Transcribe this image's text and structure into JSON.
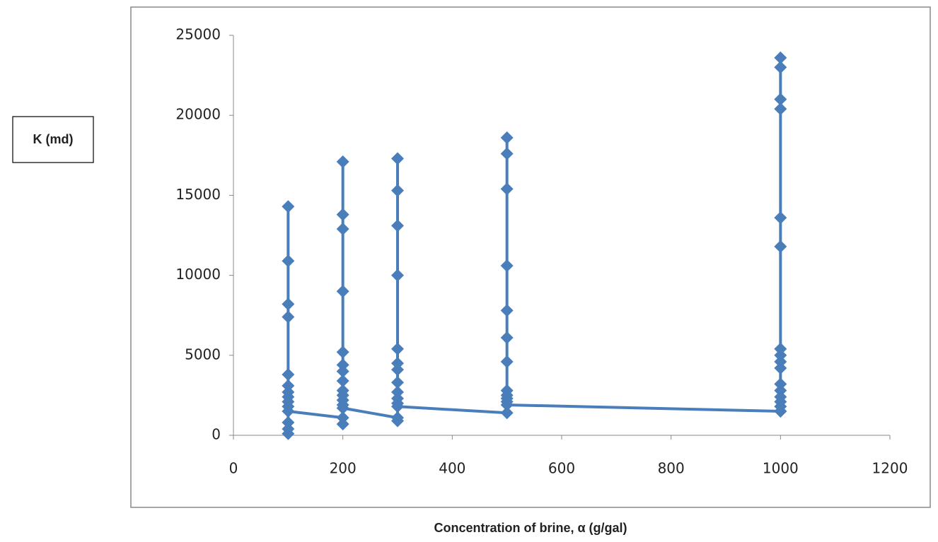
{
  "chart_data": {
    "type": "line",
    "y_label": "K (md)",
    "x_label": "Concentration of brine, α (g/gal)",
    "x": [
      100,
      100,
      100,
      100,
      100,
      100,
      100,
      100,
      100,
      100,
      100,
      100,
      100,
      100,
      200,
      200,
      200,
      200,
      200,
      200,
      200,
      200,
      200,
      200,
      200,
      200,
      200,
      200,
      200,
      300,
      300,
      300,
      300,
      300,
      300,
      300,
      300,
      300,
      300,
      300,
      300,
      300,
      300,
      500,
      500,
      500,
      500,
      500,
      500,
      500,
      500,
      500,
      500,
      500,
      500,
      500,
      1000,
      1000,
      1000,
      1000,
      1000,
      1000,
      1000,
      1000,
      1000,
      1000,
      1000,
      1000,
      1000,
      1000,
      1000,
      1000,
      1000
    ],
    "series": [
      {
        "color": "#4a7ebb",
        "values": [
          100,
          400,
          800,
          14300,
          10900,
          8200,
          7400,
          3800,
          3100,
          2700,
          2400,
          2100,
          1800,
          1500,
          1100,
          700,
          17100,
          13800,
          12900,
          9000,
          5200,
          4400,
          4000,
          3400,
          2800,
          2500,
          2200,
          1900,
          1700,
          1100,
          900,
          17300,
          15300,
          13100,
          10000,
          5400,
          4500,
          4100,
          3300,
          2700,
          2300,
          2000,
          1800,
          1400,
          18600,
          17600,
          15400,
          10600,
          7800,
          6100,
          4600,
          2800,
          2500,
          2300,
          2100,
          1900,
          1500,
          23600,
          23000,
          21000,
          20400,
          13600,
          11800,
          5400,
          5000,
          4600,
          4200,
          3200,
          2800,
          2400,
          2100,
          1800,
          1500
        ]
      }
    ],
    "xlim": [
      0,
      1200
    ],
    "xticks": [
      0,
      200,
      400,
      600,
      800,
      1000,
      1200
    ],
    "ylim": [
      0,
      25000
    ],
    "yticks": [
      0,
      5000,
      10000,
      15000,
      20000,
      25000
    ],
    "grid": false,
    "markers": "diamond"
  }
}
